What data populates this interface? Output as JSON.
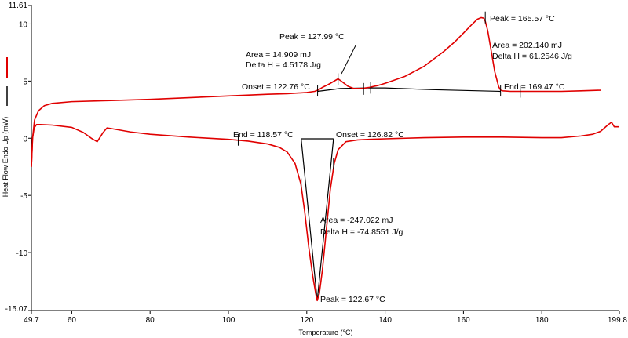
{
  "chart_data": {
    "type": "line",
    "title": "",
    "xlabel": "Temperature (°C)",
    "ylabel": "Heat Flow Endo Up (mW)",
    "xlim": [
      49.7,
      199.8
    ],
    "ylim": [
      -15.07,
      11.61
    ],
    "x_tick_labels": [
      "49.7",
      "60",
      "80",
      "100",
      "120",
      "140",
      "160",
      "180",
      "199.8"
    ],
    "x_tick_values": [
      49.7,
      60,
      80,
      100,
      120,
      140,
      160,
      180,
      199.8
    ],
    "y_tick_labels": [
      "11.61",
      "10",
      "5",
      "0",
      "-5",
      "-10",
      "-15.07"
    ],
    "y_tick_values": [
      11.61,
      10,
      5,
      0,
      -5,
      -10,
      -15.07
    ],
    "grid": false,
    "series": [
      {
        "color": "#e00000",
        "x": [
          49.7,
          50.0,
          50.5,
          51.5,
          53,
          55,
          60,
          70,
          80,
          100,
          110,
          115,
          120,
          122,
          122.8,
          124,
          125.5,
          127,
          128,
          129,
          130.5,
          132,
          134,
          136,
          138,
          140,
          145,
          150,
          155,
          158,
          160,
          162,
          163.5,
          164.5,
          165.2,
          165.6,
          166.2,
          167,
          168,
          169,
          169.5,
          170,
          172,
          175,
          180,
          185,
          190,
          195
        ],
        "y": [
          -2.5,
          0.0,
          1.6,
          2.4,
          2.85,
          3.05,
          3.2,
          3.3,
          3.4,
          3.7,
          3.85,
          3.9,
          4.0,
          4.1,
          4.2,
          4.45,
          4.7,
          5.0,
          5.2,
          4.95,
          4.55,
          4.35,
          4.35,
          4.45,
          4.6,
          4.8,
          5.4,
          6.3,
          7.6,
          8.5,
          9.2,
          9.9,
          10.4,
          10.55,
          10.5,
          10.2,
          9.4,
          7.8,
          5.8,
          4.5,
          4.2,
          4.15,
          4.1,
          4.1,
          4.1,
          4.1,
          4.15,
          4.2
        ]
      },
      {
        "color": "#e00000",
        "x": [
          49.7,
          50.0,
          50.4,
          51,
          52,
          55,
          60,
          63,
          65,
          66.5,
          68,
          69,
          70,
          75,
          80,
          90,
          100,
          105,
          110,
          113,
          115,
          117,
          118.5,
          119.5,
          120.5,
          121.5,
          122.3,
          122.67,
          123.2,
          124,
          125,
          126,
          127,
          128,
          130,
          133,
          136,
          140,
          150,
          160,
          170,
          180,
          185,
          190,
          193,
          195,
          197,
          197.8,
          198.5,
          199.8
        ],
        "y": [
          -2.5,
          0.0,
          0.9,
          1.2,
          1.2,
          1.15,
          0.95,
          0.5,
          0.0,
          -0.3,
          0.5,
          0.9,
          0.85,
          0.55,
          0.35,
          0.1,
          -0.1,
          -0.25,
          -0.5,
          -0.8,
          -1.2,
          -2.2,
          -4.0,
          -6.5,
          -9.5,
          -12.0,
          -13.6,
          -14.2,
          -13.6,
          -11.5,
          -8.0,
          -4.5,
          -2.2,
          -1.0,
          -0.3,
          -0.15,
          -0.1,
          -0.05,
          0.05,
          0.1,
          0.1,
          0.05,
          0.05,
          0.2,
          0.35,
          0.6,
          1.2,
          1.4,
          1.0,
          1.0
        ]
      }
    ],
    "baselines": [
      {
        "x": [
          122.76,
          128.5,
          135.5,
          140,
          152,
          169.47
        ],
        "y": [
          4.1,
          4.35,
          4.4,
          4.4,
          4.25,
          4.1
        ]
      },
      {
        "x": [
          118.57,
          126.82
        ],
        "y": [
          -0.05,
          -0.05
        ]
      }
    ],
    "peak_bounds": [
      {
        "x": [
          118.57,
          122.67,
          126.82
        ],
        "y": [
          -0.05,
          -14.2,
          -0.05
        ]
      }
    ],
    "annotations": [
      {
        "text": "Peak = 127.99 °C"
      },
      {
        "text": "Area = 14.909 mJ"
      },
      {
        "text": "Delta H = 4.5178 J/g"
      },
      {
        "text": "Onset = 122.76 °C"
      },
      {
        "text": "Peak = 165.57 °C"
      },
      {
        "text": "Area = 202.140 mJ"
      },
      {
        "text": "Delta H = 61.2546 J/g"
      },
      {
        "text": "End = 169.47 °C"
      },
      {
        "text": "End = 118.57 °C"
      },
      {
        "text": "Onset = 126.82 °C"
      },
      {
        "text": "Area = -247.022 mJ"
      },
      {
        "text": "Delta H = -74.8551 J/g"
      },
      {
        "text": "Peak = 122.67 °C"
      }
    ],
    "marker_temperatures": [
      102.5,
      118.57,
      122.76,
      126.82,
      127.99,
      134.5,
      136.3,
      165.57,
      169.47,
      174.5
    ],
    "legend": {
      "placement": "left",
      "colors": [
        "#e00000",
        "#000000"
      ]
    }
  }
}
